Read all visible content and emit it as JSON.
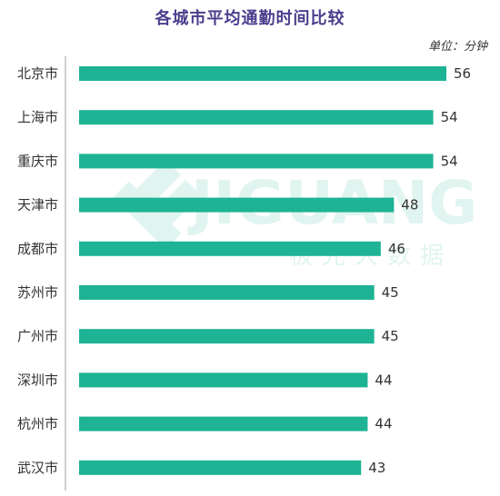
{
  "chart_data": {
    "type": "bar",
    "orientation": "horizontal",
    "title": "各城市平均通勤时间比较",
    "unit_label": "单位：分钟",
    "categories": [
      "北京市",
      "上海市",
      "重庆市",
      "天津市",
      "成都市",
      "苏州市",
      "广州市",
      "深圳市",
      "杭州市",
      "武汉市"
    ],
    "values": [
      56,
      54,
      54,
      48,
      46,
      45,
      45,
      44,
      44,
      43
    ],
    "xlim": [
      0,
      56
    ],
    "grid": false,
    "bar_color": "#1db394"
  },
  "watermark": {
    "brand": "JIGUANG",
    "subtitle": "极光大数据",
    "color": "#1db394"
  }
}
